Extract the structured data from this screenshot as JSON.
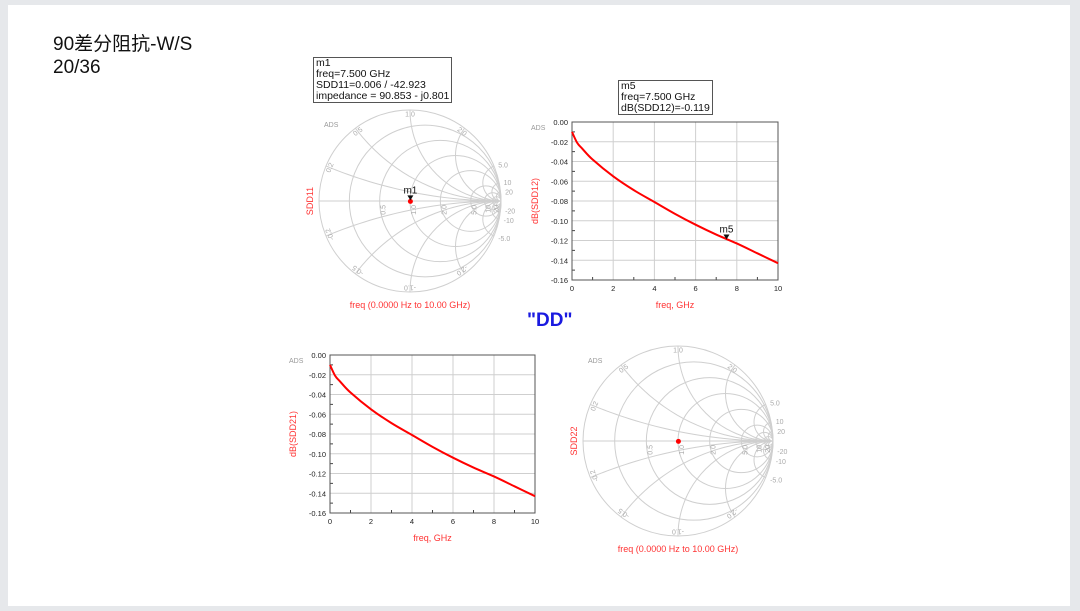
{
  "slide": {
    "title": "90差分阻抗-W/S",
    "subtitle": "20/36",
    "group_label": "\"DD\""
  },
  "colors": {
    "trace": "#ff0000",
    "grid": "#cfcfcf",
    "label": "#ff3333",
    "marker_text": "#111111",
    "dd": "#1a1ae0"
  },
  "chart_data": [
    {
      "type": "smith",
      "watermark": "ADS",
      "ylabel": "SDD11",
      "xlabel": "freq (0.0000 Hz to 10.00 GHz)",
      "r_ticks": [
        "0.5",
        "1.0",
        "2.0",
        "5.0",
        "10",
        "20"
      ],
      "x_ticks": [
        "0.2",
        "0.5",
        "1.0",
        "2.0",
        "5.0",
        "10",
        "20"
      ],
      "x_ticks_neg": [
        "-0.2",
        "-0.5",
        "-1.0",
        "-2.0",
        "-5.0",
        "-10",
        "-20"
      ],
      "marker": {
        "name": "m1",
        "lines": [
          "m1",
          "freq=7.500 GHz",
          "SDD11=0.006 / -42.923",
          "impedance = 90.853 - j0.801"
        ],
        "mag": 0.006,
        "angle_deg": -42.923
      }
    },
    {
      "type": "line",
      "watermark": "ADS",
      "ylabel": "dB(SDD12)",
      "xlabel": "freq, GHz",
      "xlim": [
        0,
        10
      ],
      "ylim": [
        -0.16,
        0.0
      ],
      "grid": true,
      "x_ticks": [
        "0",
        "2",
        "4",
        "6",
        "8",
        "10"
      ],
      "y_ticks": [
        "0.00",
        "-0.02",
        "-0.04",
        "-0.06",
        "-0.08",
        "-0.10",
        "-0.12",
        "-0.14",
        "-0.16"
      ],
      "x": [
        0,
        0.25,
        0.5,
        1,
        2,
        3,
        4,
        5,
        6,
        7,
        8,
        9,
        10
      ],
      "y": [
        -0.01,
        -0.021,
        -0.027,
        -0.038,
        -0.055,
        -0.069,
        -0.081,
        -0.093,
        -0.104,
        -0.114,
        -0.123,
        -0.133,
        -0.143
      ],
      "marker": {
        "name": "m5",
        "lines": [
          "m5",
          "freq=7.500 GHz",
          "dB(SDD12)=-0.119"
        ],
        "x": 7.5,
        "y": -0.119
      }
    },
    {
      "type": "line",
      "watermark": "ADS",
      "ylabel": "dB(SDD21)",
      "xlabel": "freq, GHz",
      "xlim": [
        0,
        10
      ],
      "ylim": [
        -0.16,
        0.0
      ],
      "grid": true,
      "x_ticks": [
        "0",
        "2",
        "4",
        "6",
        "8",
        "10"
      ],
      "y_ticks": [
        "0.00",
        "-0.02",
        "-0.04",
        "-0.06",
        "-0.08",
        "-0.10",
        "-0.12",
        "-0.14",
        "-0.16"
      ],
      "x": [
        0,
        0.25,
        0.5,
        1,
        2,
        3,
        4,
        5,
        6,
        7,
        8,
        9,
        10
      ],
      "y": [
        -0.01,
        -0.021,
        -0.027,
        -0.038,
        -0.055,
        -0.069,
        -0.081,
        -0.093,
        -0.104,
        -0.114,
        -0.123,
        -0.133,
        -0.143
      ]
    },
    {
      "type": "smith",
      "watermark": "ADS",
      "ylabel": "SDD22",
      "xlabel": "freq (0.0000 Hz to 10.00 GHz)",
      "r_ticks": [
        "0.5",
        "1.0",
        "2.0",
        "5.0",
        "10",
        "20"
      ],
      "x_ticks": [
        "0.2",
        "0.5",
        "1.0",
        "2.0",
        "5.0",
        "10",
        "20"
      ],
      "x_ticks_neg": [
        "-0.2",
        "-0.5",
        "-1.0",
        "-2.0",
        "-5.0",
        "-10",
        "-20"
      ],
      "point": {
        "mag": 0.006,
        "angle_deg": -42.923
      }
    }
  ]
}
